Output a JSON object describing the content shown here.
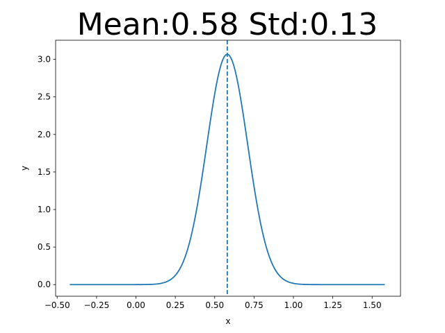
{
  "chart_data": {
    "type": "line",
    "title": "Mean:0.58 Std:0.13",
    "xlabel": "x",
    "ylabel": "y",
    "xlim": [
      -0.51,
      1.68
    ],
    "ylim": [
      -0.155,
      3.255
    ],
    "xticks": [
      -0.5,
      -0.25,
      0.0,
      0.25,
      0.5,
      0.75,
      1.0,
      1.25,
      1.5
    ],
    "xtick_labels": [
      "−0.50",
      "−0.25",
      "0.00",
      "0.25",
      "0.50",
      "0.75",
      "1.00",
      "1.25",
      "1.50"
    ],
    "yticks": [
      0.0,
      0.5,
      1.0,
      1.5,
      2.0,
      2.5,
      3.0
    ],
    "ytick_labels": [
      "0.0",
      "0.5",
      "1.0",
      "1.5",
      "2.0",
      "2.5",
      "3.0"
    ],
    "grid": false,
    "series": [
      {
        "kind": "normal-pdf-curve",
        "mean": 0.58,
        "std": 0.13,
        "x_range": [
          -0.42,
          1.58
        ],
        "color": "#1f77b4",
        "style": "solid"
      },
      {
        "kind": "vertical-line",
        "x": 0.58,
        "color": "#1f77b4",
        "style": "dashed"
      }
    ]
  }
}
